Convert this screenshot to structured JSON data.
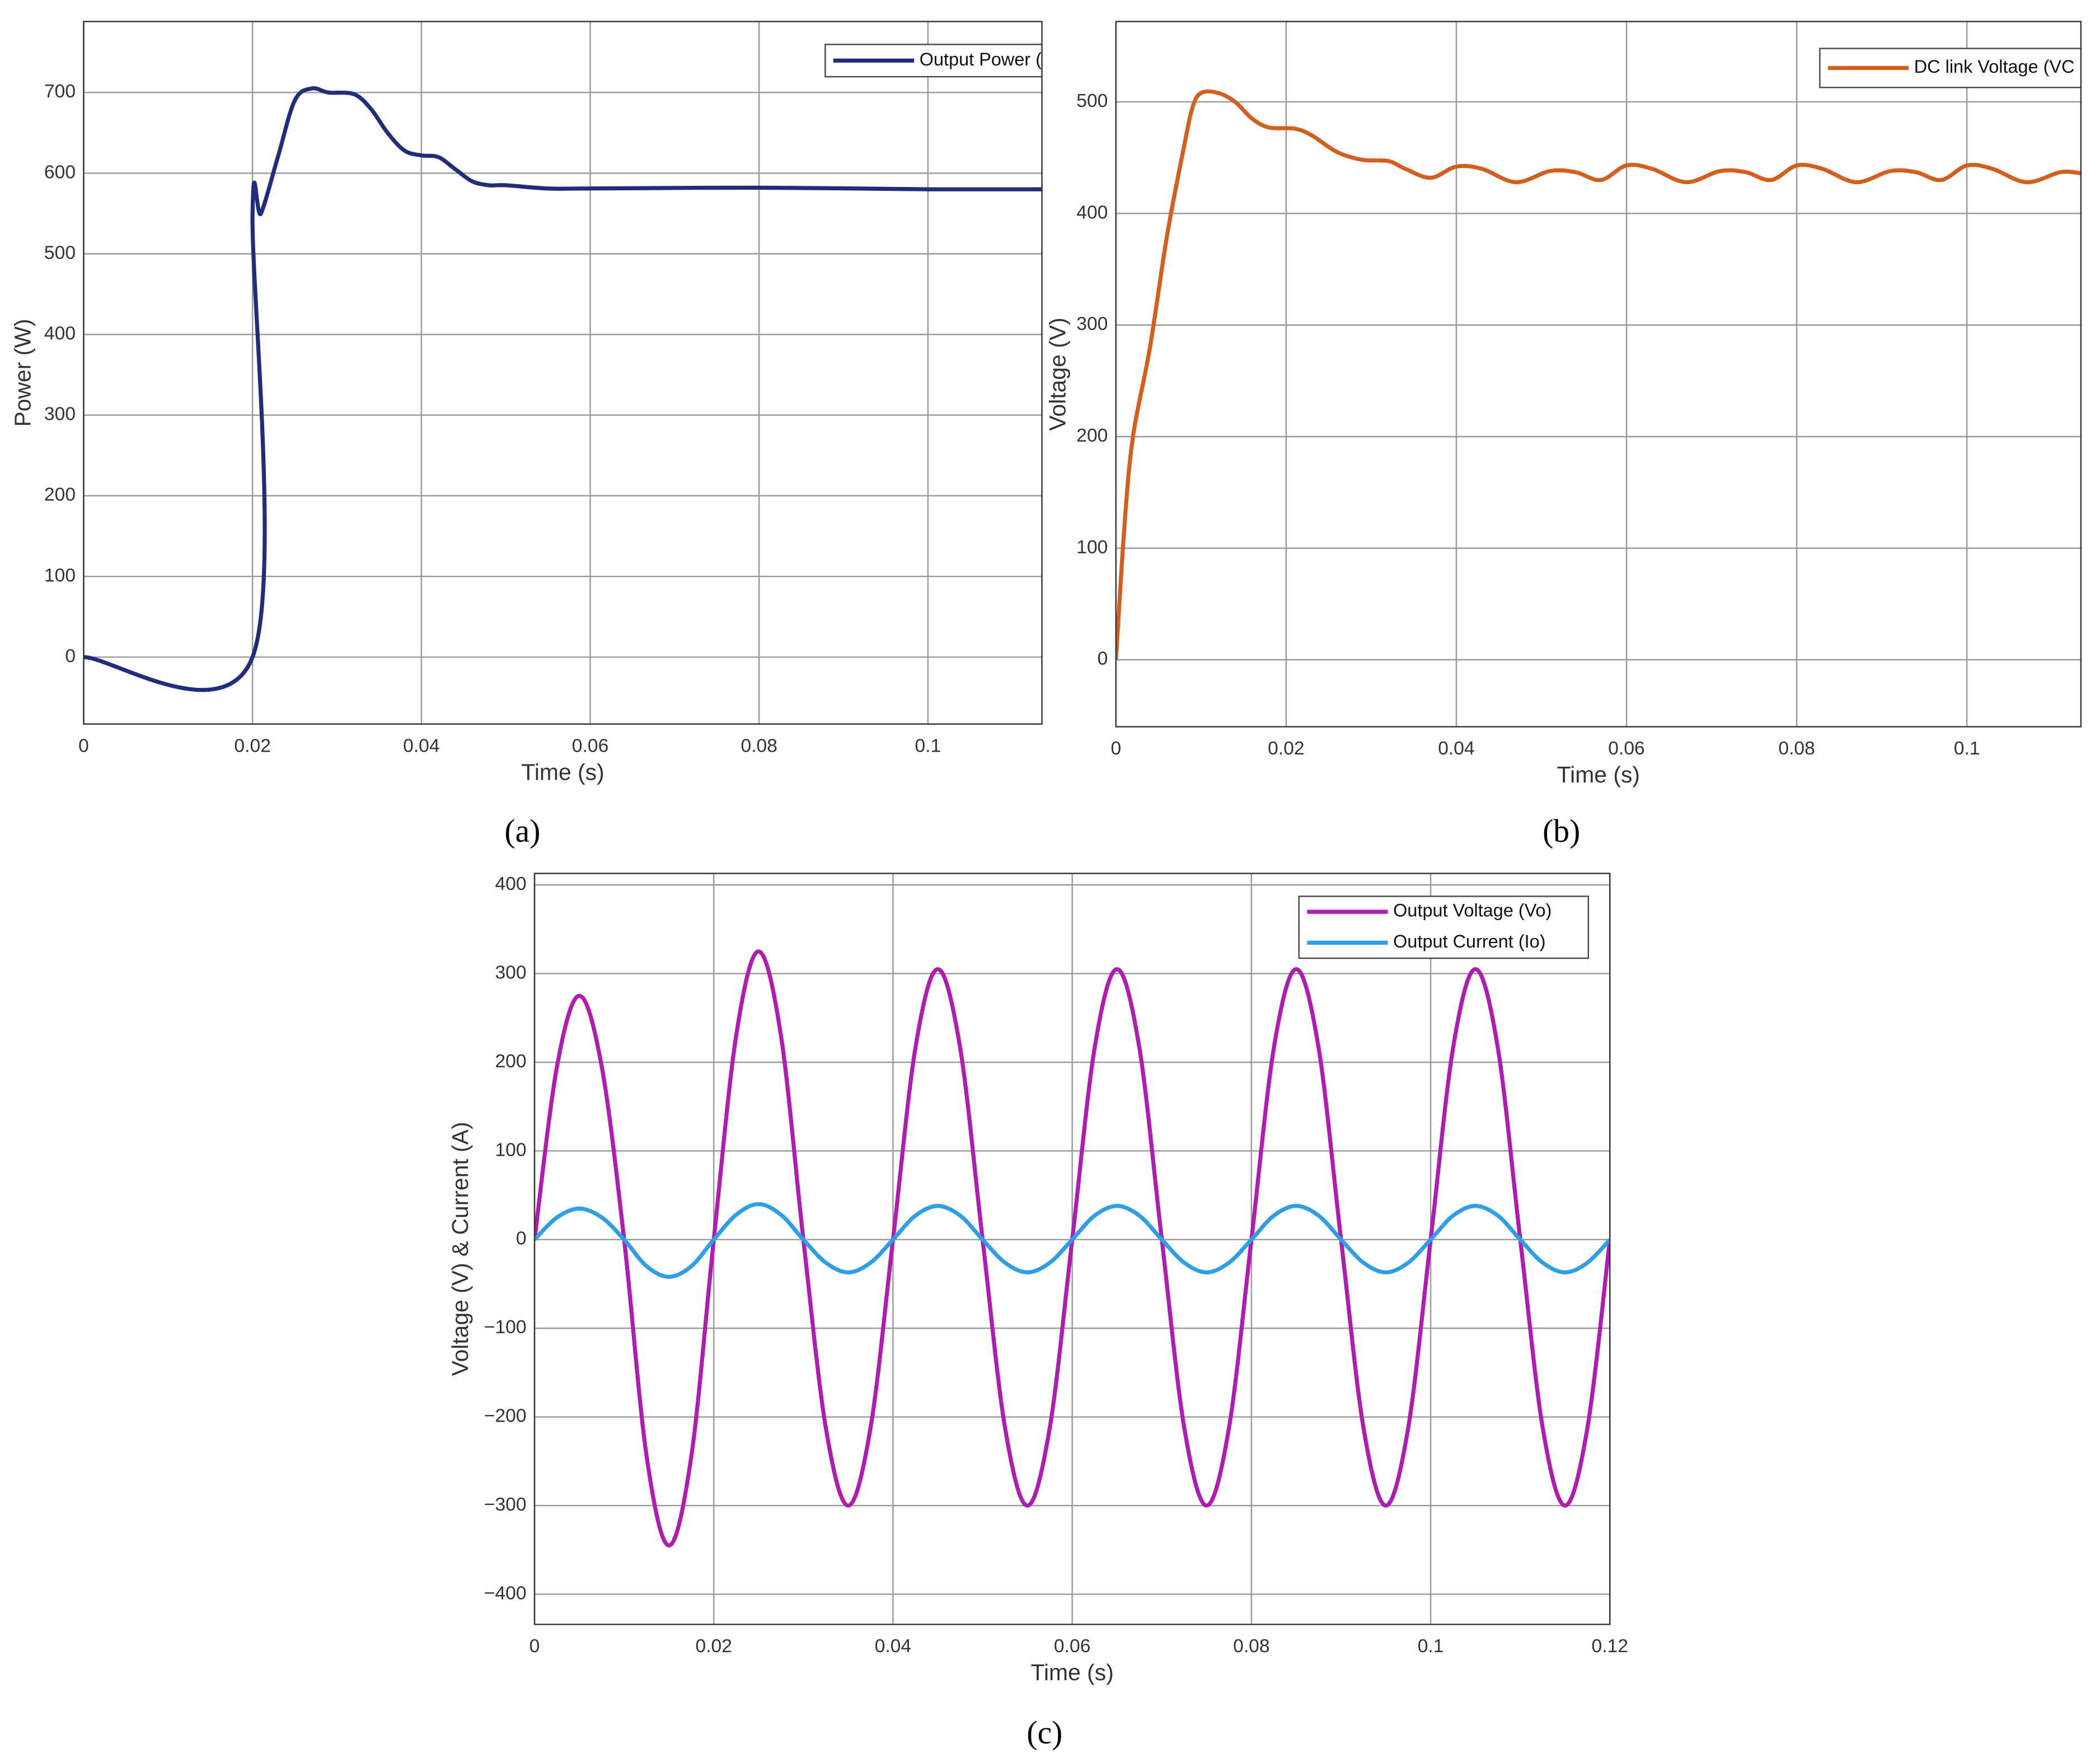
{
  "chart_data": [
    {
      "type": "line",
      "caption": "(a)",
      "xlabel": "Time (s)",
      "ylabel": "Power (W)",
      "xlim": [
        0,
        0.1135
      ],
      "xticks": [
        0,
        0.02,
        0.04,
        0.06,
        0.08,
        0.1
      ],
      "ylim": [
        -83,
        788
      ],
      "yticks": [
        0,
        100,
        200,
        300,
        400,
        500,
        600,
        700
      ],
      "grid": true,
      "legend": "upper right",
      "x": [
        0,
        0.02,
        0.02,
        0.021,
        0.023,
        0.025,
        0.027,
        0.029,
        0.032,
        0.034,
        0.036,
        0.038,
        0.04,
        0.042,
        0.044,
        0.046,
        0.048,
        0.05,
        0.055,
        0.06,
        0.08,
        0.1,
        0.1135
      ],
      "series": [
        {
          "name": "Output Power (",
          "color": "#1f2d7a",
          "values": [
            0,
            0,
            550,
            550,
            620,
            690,
            705,
            700,
            698,
            680,
            650,
            628,
            622,
            620,
            605,
            590,
            585,
            585,
            581,
            581,
            582,
            580,
            580
          ]
        }
      ]
    },
    {
      "type": "line",
      "caption": "(b)",
      "xlabel": "Time (s)",
      "ylabel": "Voltage (V)",
      "xlim": [
        0,
        0.1134
      ],
      "xticks": [
        0,
        0.02,
        0.04,
        0.06,
        0.08,
        0.1
      ],
      "ylim": [
        -60,
        572
      ],
      "yticks": [
        0,
        100,
        200,
        300,
        400,
        500
      ],
      "grid": true,
      "legend": "upper right",
      "x": [
        0,
        0.001,
        0.002,
        0.004,
        0.006,
        0.008,
        0.009,
        0.01,
        0.012,
        0.014,
        0.016,
        0.018,
        0.021,
        0.023,
        0.026,
        0.029,
        0.032,
        0.034,
        0.037,
        0.04,
        0.043,
        0.047,
        0.051,
        0.054,
        0.057,
        0.06,
        0.063,
        0.067,
        0.071,
        0.074,
        0.077,
        0.08,
        0.083,
        0.087,
        0.091,
        0.094,
        0.097,
        0.1,
        0.103,
        0.107,
        0.111,
        0.1134
      ],
      "series": [
        {
          "name": "DC link Voltage (VC",
          "color": "#d35f1e",
          "values": [
            0,
            120,
            200,
            280,
            380,
            460,
            495,
            508,
            508,
            500,
            485,
            477,
            476,
            470,
            455,
            448,
            447,
            440,
            432,
            442,
            440,
            428,
            438,
            437,
            430,
            443,
            440,
            428,
            438,
            437,
            430,
            443,
            440,
            428,
            438,
            437,
            430,
            443,
            440,
            428,
            437,
            436
          ]
        }
      ]
    },
    {
      "type": "line",
      "caption": "(c)",
      "xlabel": "Time (s)",
      "ylabel": "Voltage (V) & Current (A)",
      "xlim": [
        0,
        0.12
      ],
      "xticks": [
        0,
        0.02,
        0.04,
        0.06,
        0.08,
        0.1,
        0.12
      ],
      "ylim": [
        -434,
        413
      ],
      "yticks": [
        {
          "value": -400,
          "label": "−400"
        },
        {
          "value": -300,
          "label": "−300"
        },
        {
          "value": -200,
          "label": "−200"
        },
        {
          "value": -100,
          "label": "−100"
        },
        0,
        100,
        200,
        300,
        400
      ],
      "grid": true,
      "legend": "upper right",
      "x": [
        0,
        0.0025,
        0.005,
        0.0075,
        0.01,
        0.0125,
        0.015,
        0.0175,
        0.02,
        0.0225,
        0.025,
        0.0275,
        0.03,
        0.0325,
        0.035,
        0.0375,
        0.04,
        0.0425,
        0.045,
        0.0475,
        0.05,
        0.0525,
        0.055,
        0.0575,
        0.06,
        0.0625,
        0.065,
        0.0675,
        0.07,
        0.0725,
        0.075,
        0.0775,
        0.08,
        0.0825,
        0.085,
        0.0875,
        0.09,
        0.0925,
        0.095,
        0.0975,
        0.1,
        0.1025,
        0.105,
        0.1075,
        0.11,
        0.1125,
        0.115,
        0.1175,
        0.12
      ],
      "series": [
        {
          "name": "Output Voltage (Vo)",
          "color": "#b01bb0",
          "values": [
            0,
            195,
            275,
            195,
            0,
            -244,
            -345,
            -244,
            0,
            230,
            325,
            230,
            0,
            -212,
            -300,
            -212,
            0,
            216,
            305,
            216,
            0,
            -212,
            -300,
            -212,
            0,
            216,
            305,
            216,
            0,
            -212,
            -300,
            -212,
            0,
            216,
            305,
            216,
            0,
            -212,
            -300,
            -212,
            0,
            216,
            305,
            216,
            0,
            -212,
            -300,
            -212,
            0
          ]
        },
        {
          "name": "Output Current (Io)",
          "color": "#2e9fe6",
          "values": [
            0,
            25,
            35,
            25,
            0,
            -30,
            -42,
            -30,
            0,
            28,
            40,
            28,
            0,
            -26,
            -37,
            -26,
            0,
            27,
            38,
            27,
            0,
            -26,
            -37,
            -26,
            0,
            27,
            38,
            27,
            0,
            -26,
            -37,
            -26,
            0,
            27,
            38,
            27,
            0,
            -26,
            -37,
            -26,
            0,
            27,
            38,
            27,
            0,
            -26,
            -37,
            -26,
            0
          ]
        }
      ]
    }
  ]
}
